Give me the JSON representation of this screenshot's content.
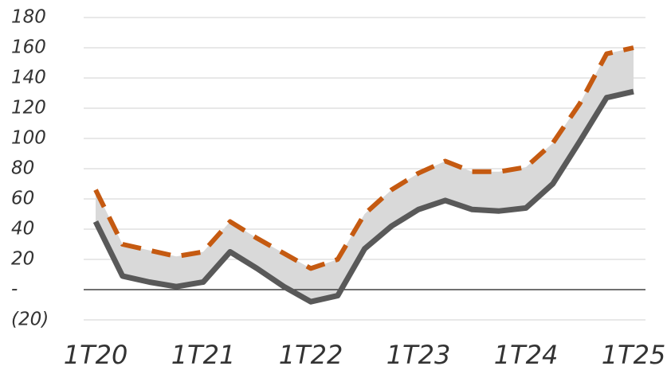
{
  "chart_data": {
    "type": "line",
    "categories": [
      "1T20",
      null,
      null,
      null,
      "1T21",
      null,
      null,
      null,
      "1T22",
      null,
      null,
      null,
      "1T23",
      null,
      null,
      null,
      "1T24",
      null,
      null,
      null,
      "1T25"
    ],
    "series": [
      {
        "color": "#595959",
        "values": [
          45,
          9,
          5,
          2,
          5,
          25,
          14,
          2,
          -8,
          -4,
          27,
          42,
          53,
          59,
          53,
          52,
          54,
          70,
          98,
          127,
          131
        ]
      },
      {
        "color": "#c55a11",
        "values": [
          66,
          30,
          26,
          22,
          25,
          45,
          34,
          24,
          14,
          20,
          50,
          66,
          77,
          85,
          78,
          78,
          81,
          97,
          123,
          156,
          160
        ]
      }
    ],
    "band_color": "#d9d9d9",
    "ylim": [
      -20,
      180
    ],
    "yticks": [
      {
        "value": -20,
        "label": "(20)"
      },
      {
        "value": 0,
        "label": "-"
      },
      20,
      40,
      60,
      80,
      100,
      120,
      140,
      160,
      180
    ],
    "grid": true
  }
}
